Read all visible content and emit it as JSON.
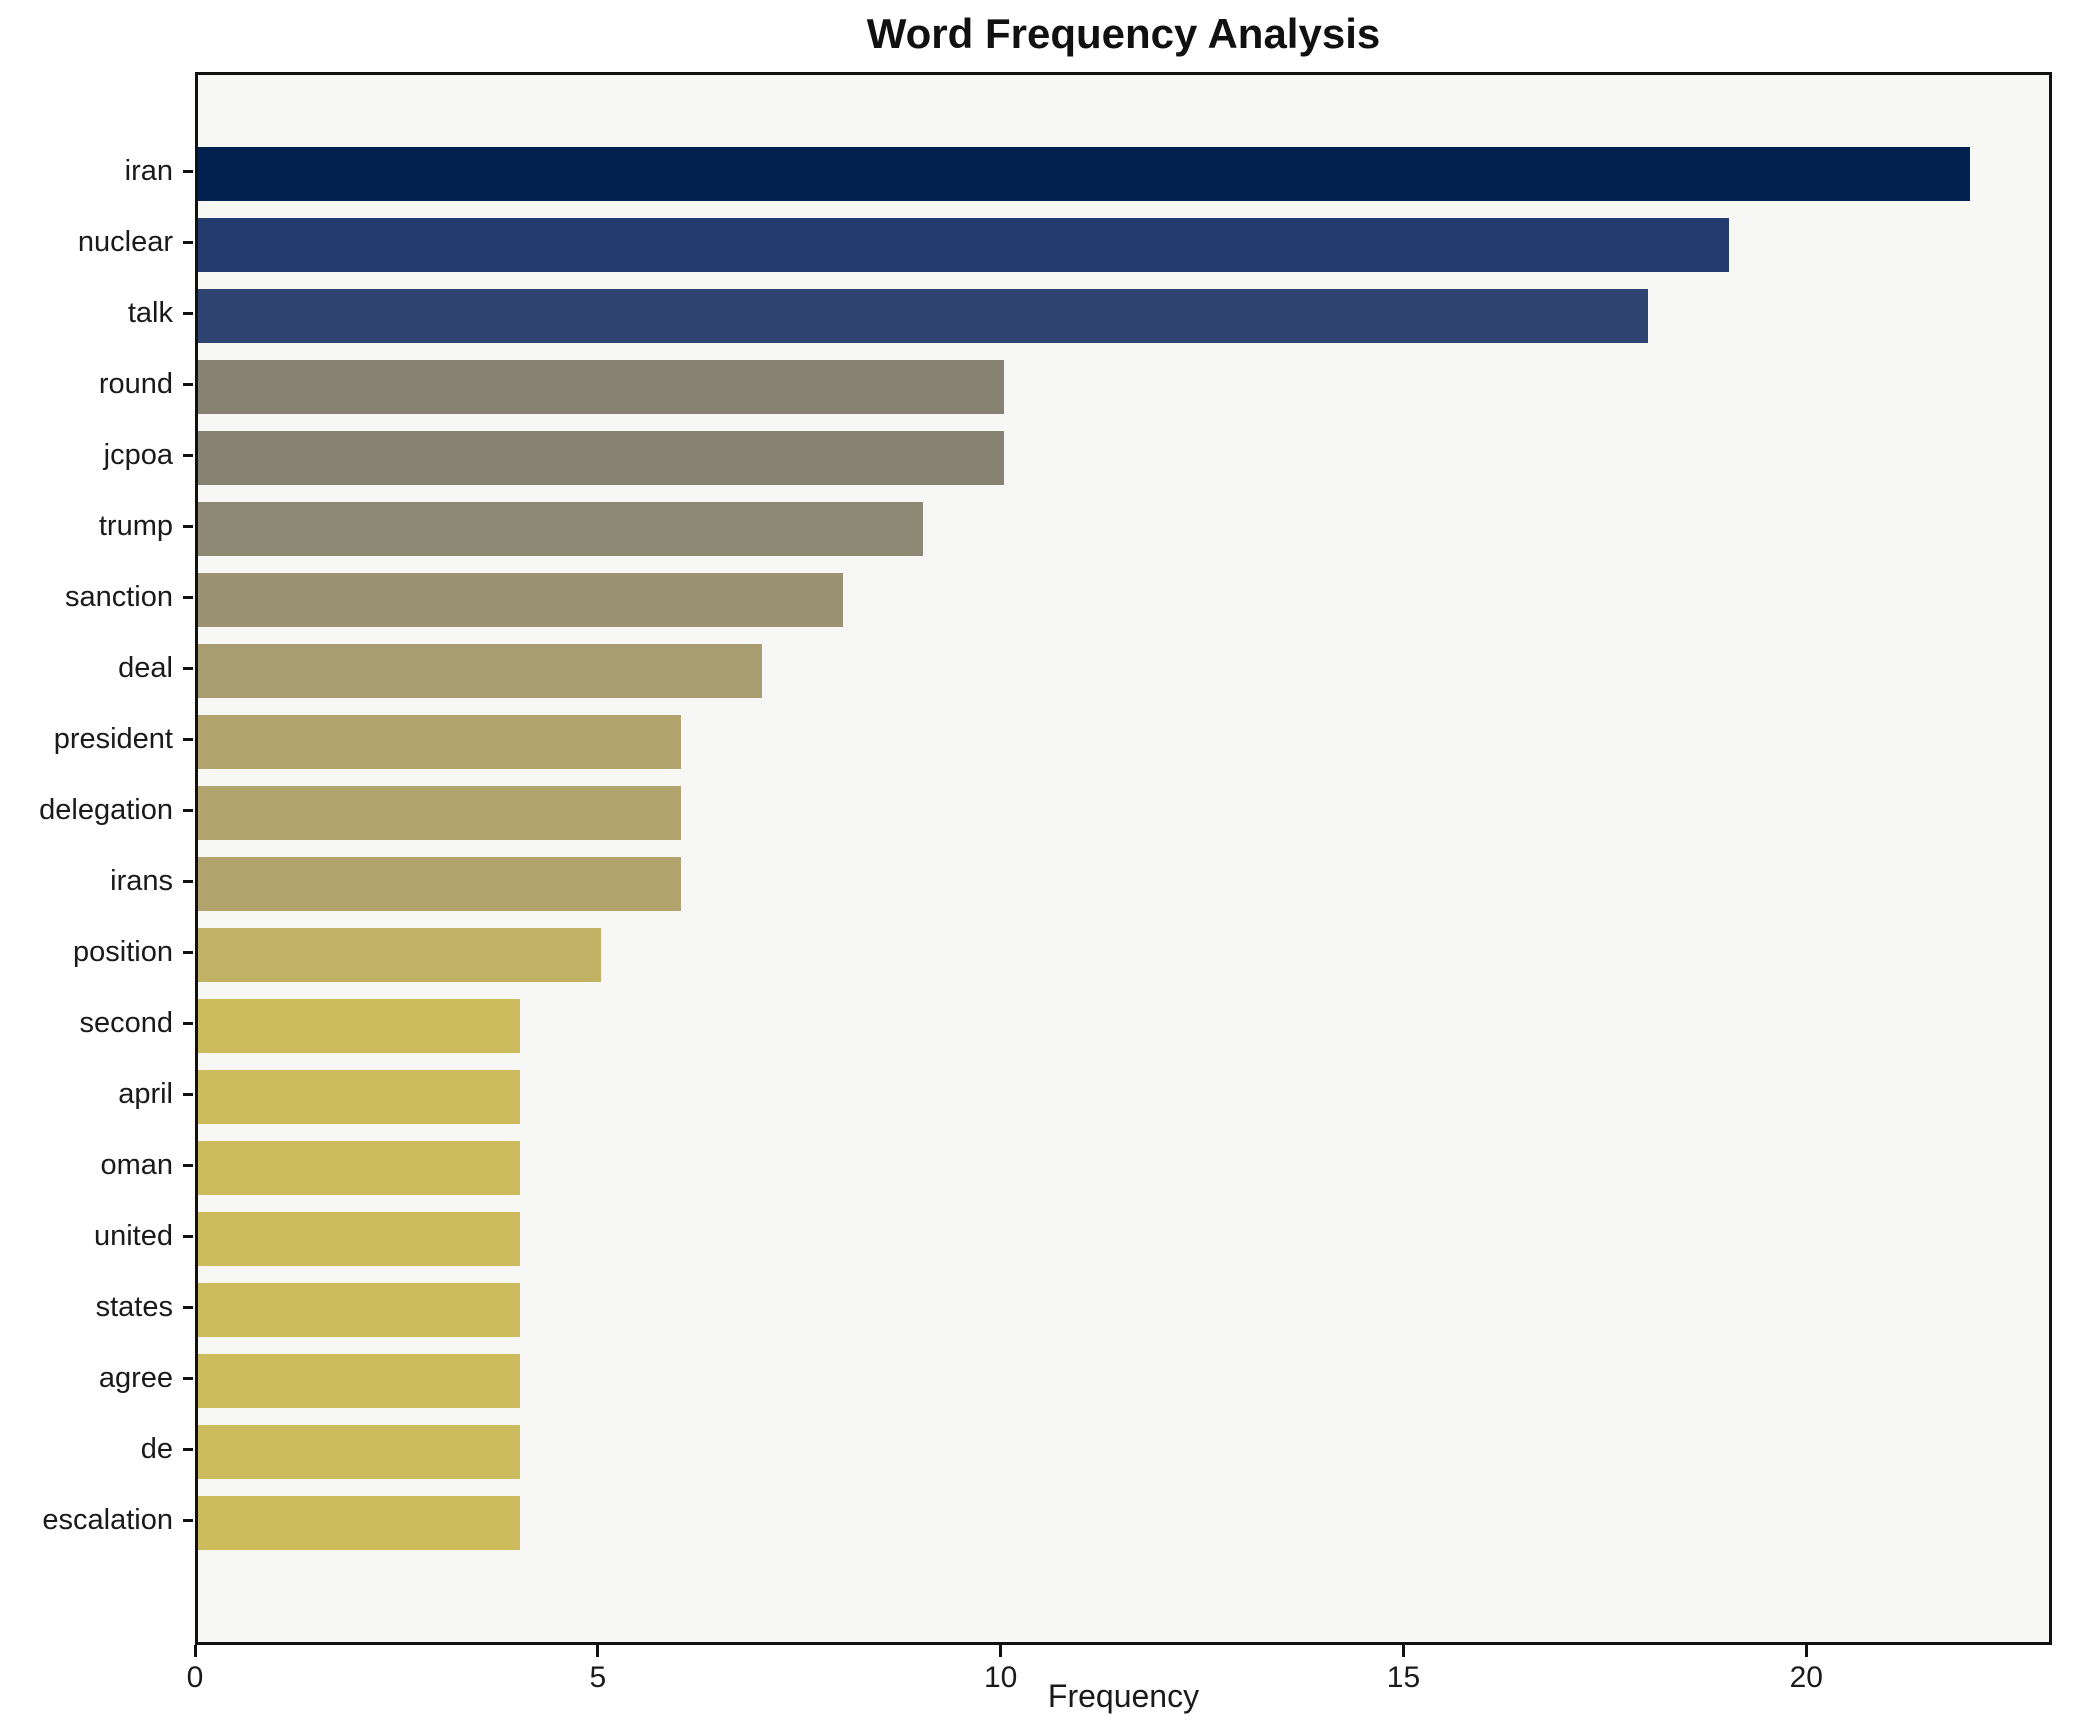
{
  "title": "Word Frequency Analysis",
  "xlabel": "Frequency",
  "chart_data": {
    "type": "bar",
    "orientation": "horizontal",
    "title": "Word Frequency Analysis",
    "xlabel": "Frequency",
    "ylabel": "",
    "categories": [
      "iran",
      "nuclear",
      "talk",
      "round",
      "jcpoa",
      "trump",
      "sanction",
      "deal",
      "president",
      "delegation",
      "irans",
      "position",
      "second",
      "april",
      "oman",
      "united",
      "states",
      "agree",
      "de",
      "escalation"
    ],
    "values": [
      22,
      19,
      18,
      10,
      10,
      9,
      8,
      7,
      6,
      6,
      6,
      5,
      4,
      4,
      4,
      4,
      4,
      4,
      4,
      4
    ],
    "bar_colors": [
      "#01224e",
      "#233c6d",
      "#2f4471",
      "#868372",
      "#868372",
      "#8e8974",
      "#9a9273",
      "#a89d70",
      "#b1a46c",
      "#b1a46c",
      "#b1a46c",
      "#c0b164",
      "#ccbc5d",
      "#ccbc5d",
      "#ccbc5d",
      "#ccbc5d",
      "#ccbc5d",
      "#ccbc5d",
      "#ccbc5d",
      "#ccbc5d"
    ],
    "xlim": [
      0,
      23.05
    ],
    "x_ticks": [
      0,
      5,
      10,
      15,
      20
    ],
    "grid": false,
    "legend": null,
    "plot_bg": "#f7f7f6",
    "fig_bg": "#ffffff",
    "spine_color": "#111111"
  }
}
